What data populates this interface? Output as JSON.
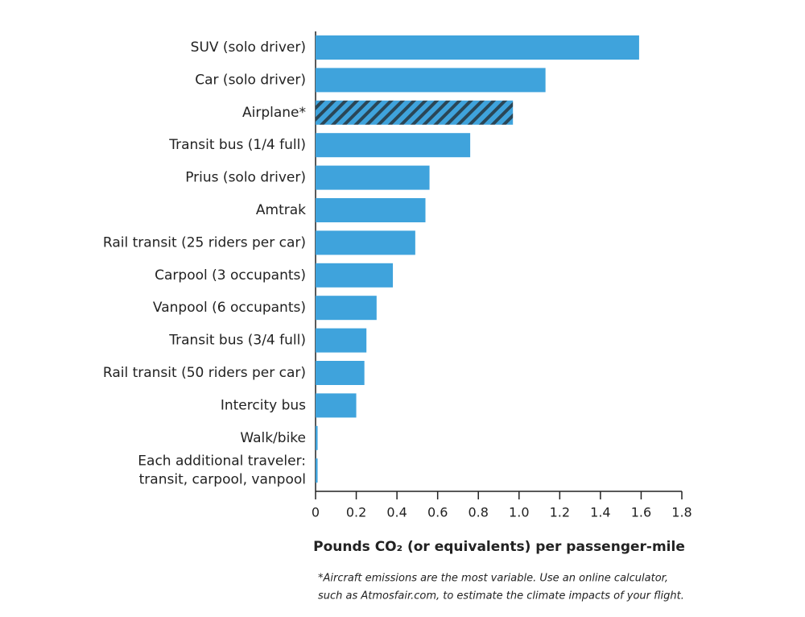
{
  "chart_data": {
    "type": "hbar",
    "categories": [
      "SUV (solo driver)",
      "Car (solo driver)",
      "Airplane*",
      "Transit bus (1/4 full)",
      "Prius (solo driver)",
      "Amtrak",
      "Rail transit (25 riders per car)",
      "Carpool (3 occupants)",
      "Vanpool (6 occupants)",
      "Transit bus (3/4 full)",
      "Rail transit (50 riders per car)",
      "Intercity bus",
      "Walk/bike",
      "Each additional traveler:\ntransit, carpool, vanpool"
    ],
    "values": [
      1.59,
      1.13,
      0.97,
      0.76,
      0.56,
      0.54,
      0.49,
      0.38,
      0.3,
      0.25,
      0.24,
      0.2,
      0.01,
      0.01
    ],
    "color": "#3fa3dc",
    "hatch": [
      2
    ],
    "hatch_color": "#2a4656",
    "xlim": [
      0,
      1.8
    ],
    "xticks": [
      0,
      0.2,
      0.4,
      0.6,
      0.8,
      {
        "value": 1,
        "label": "1.0"
      },
      1.2,
      1.4,
      1.6,
      1.8
    ],
    "xlabel": "Pounds CO₂ (or equivalents) per passenger-mile",
    "footnote": [
      "*Aircraft emissions are the most variable.  Use an online calculator,",
      "such as Atmosfair.com, to estimate the climate impacts of your flight."
    ]
  }
}
